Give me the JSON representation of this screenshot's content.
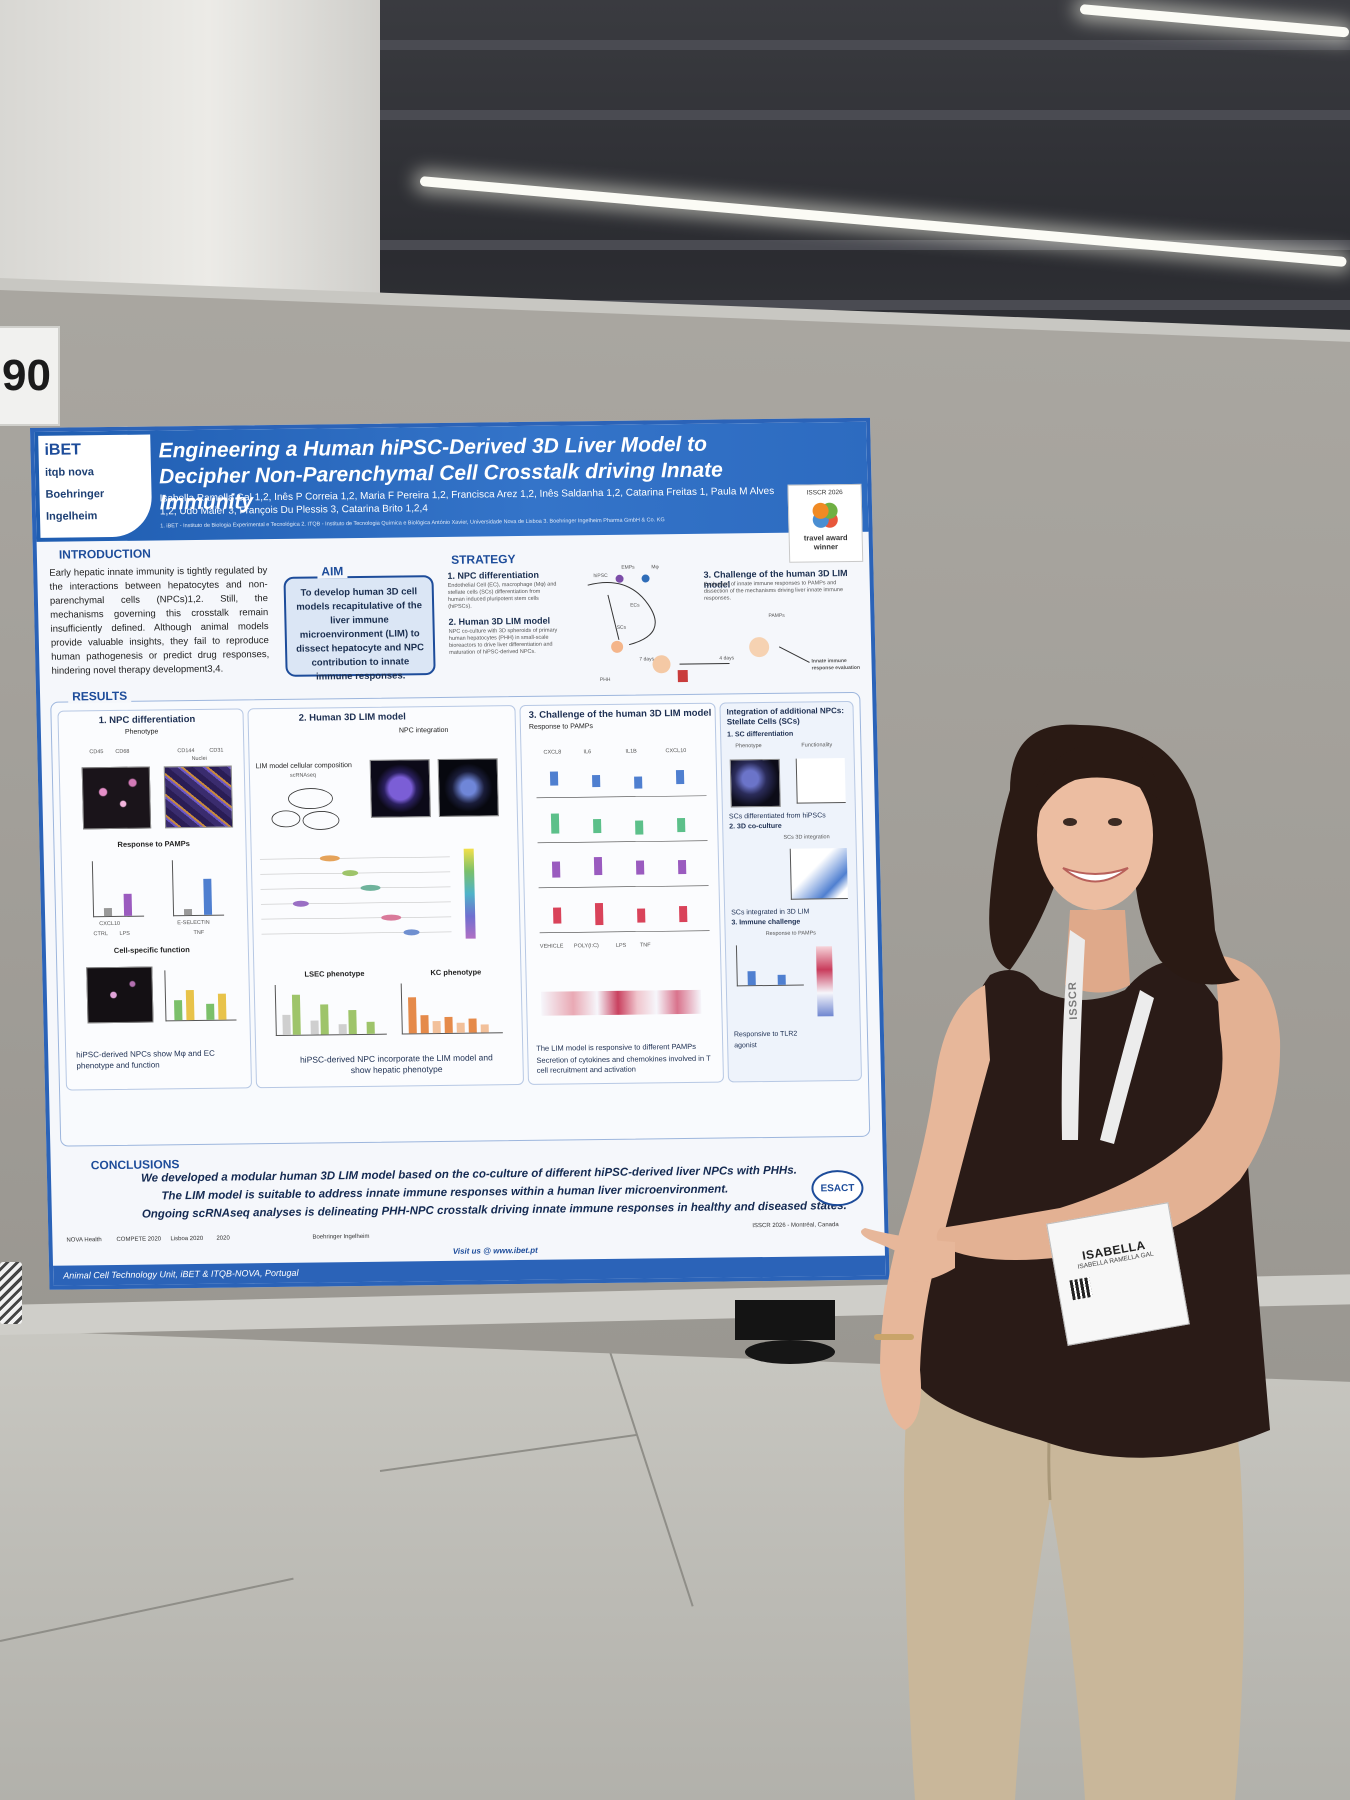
{
  "board": {
    "number": "90"
  },
  "poster": {
    "logos": [
      "iBET",
      "itqb nova",
      "Boehringer Ingelheim"
    ],
    "title": "Engineering a Human hiPSC-Derived 3D Liver Model to Decipher Non-Parenchymal Cell Crosstalk driving Innate Immunity",
    "authors": "Isabella Ramella Gal 1,2, Inês P Correia 1,2, Maria F Pereira 1,2, Francisca Arez 1,2, Inês Saldanha 1,2, Catarina Freitas 1, Paula M Alves 1,2, Udo Maier 3, François Du Plessis 3, Catarina Brito 1,2,4",
    "affiliations": "1. iBET - Instituto de Biologia Experimental e Tecnológica 2. ITQB - Instituto de Tecnologia Química e Biológica António Xavier, Universidade Nova de Lisboa 3. Boehringer Ingelheim Pharma GmbH & Co. KG",
    "award": {
      "year": "ISSCR 2026",
      "line1": "travel award",
      "line2": "winner"
    },
    "introduction": {
      "heading": "INTRODUCTION",
      "text": "Early hepatic innate immunity is tightly regulated by the interactions between hepatocytes and non-parenchymal cells (NPCs)1,2. Still, the mechanisms governing this crosstalk remain insufficiently defined. Although animal models provide valuable insights, they fail to reproduce human pathogenesis or predict drug responses, hindering novel therapy development3,4."
    },
    "aim": {
      "heading": "AIM",
      "text": "To develop human 3D cell models recapitulative of the liver immune microenvironment (LIM) to dissect hepatocyte and NPC contribution to innate immune responses."
    },
    "strategy": {
      "heading": "STRATEGY",
      "step1": "1. NPC differentiation",
      "step1_text": "Endothelial Cell (EC), macrophage (Mφ) and stellate cells (SCs) differentiation from human induced pluripotent stem cells (hiPSCs).",
      "step2": "2. Human 3D LIM model",
      "step2_text": "NPC co-culture with 3D spheroids of primary human hepatocytes (PHH) in small-scale bioreactors to drive liver differentiation and maturation of hiPSC-derived NPCs.",
      "step3": "3. Challenge of the human 3D LIM model",
      "step3_text": "Evaluation of innate immune responses to PAMPs and dissection of the mechanisms driving liver innate immune responses.",
      "labels": [
        "hiPSC",
        "EMPs",
        "Mφ",
        "ECs",
        "SCs",
        "PHH",
        "7 days",
        "4 days",
        "PAMPs",
        "Innate immune response evaluation"
      ]
    },
    "results": {
      "heading": "RESULTS",
      "panel1": {
        "title": "1. NPC differentiation",
        "phenotype": "Phenotype",
        "response": "Response to PAMPs",
        "function": "Cell-specific function",
        "markers": [
          "CD45",
          "CD68",
          "CD144",
          "CD31",
          "Nuclei"
        ],
        "plot_labels": [
          "CXCL10",
          "E-SELECTIN"
        ],
        "legend": [
          "CTRL",
          "LPS",
          "TNF"
        ],
        "check": "hiPSC-derived NPCs show Mφ and EC phenotype and function"
      },
      "panel2": {
        "title": "2. Human 3D LIM model",
        "integration": "NPC integration",
        "composition": "LIM model cellular composition",
        "umap": "scRNAseq",
        "lsec": "LSEC phenotype",
        "kc": "KC phenotype",
        "check": "hiPSC-derived NPC incorporate the LIM model and show hepatic phenotype"
      },
      "panel3": {
        "title": "3. Challenge of the human 3D LIM model",
        "response": "Response to PAMPs",
        "genes": [
          "CXCL8",
          "IL6",
          "IL1B",
          "CXCL10"
        ],
        "legend": [
          "VEHICLE",
          "POLY(I:C)",
          "LPS",
          "TNF"
        ],
        "check": "The LIM model is responsive to different PAMPs",
        "check2": "Secretion of cytokines and chemokines involved in T cell recruitment and activation"
      },
      "panel4": {
        "title": "Integration of additional NPCs: Stellate Cells (SCs)",
        "sub1": "1. SC differentiation",
        "phenotype": "Phenotype",
        "functionality": "Functionality",
        "check1": "SCs differentiated from hiPSCs",
        "sub2": "2. 3D co-culture",
        "integration": "SCs 3D integration",
        "check2": "SCs integrated in 3D LIM",
        "sub3": "3. Immune challenge",
        "response": "Response to PAMPs",
        "check3": "Responsive to TLR2 agonist"
      }
    },
    "conclusions": {
      "heading": "CONCLUSIONS",
      "line1": "We developed a modular human 3D LIM model based on the co-culture of different hiPSC-derived liver NPCs with PHHs.",
      "line2": "The LIM model is suitable to address innate immune responses within a human liver microenvironment.",
      "line3": "Ongoing scRNAseq analyses is delineating PHH-NPC crosstalk driving innate immune responses in healthy and diseased states."
    },
    "esact": "ESACT",
    "conference": "ISSCR 2026 - Montréal, Canada",
    "visit": "Visit us @ www.ibet.pt",
    "funders": [
      "NOVA Health",
      "COMPETE 2020",
      "Lisboa 2020",
      "2020",
      "Boehringer Ingelheim"
    ],
    "unit": "Animal Cell Technology Unit, iBET & ITQB-NOVA, Portugal"
  },
  "badge": {
    "name": "ISABELLA",
    "sub": "ISABELLA RAMELLA GAL",
    "lanyard": "ISSCR"
  },
  "colors": {
    "poster_blue": "#2b63b8",
    "poster_bg": "#f5f7fb",
    "board": "#a29f99",
    "top_color": "#2a1b17",
    "trousers": "#c9b79a"
  }
}
